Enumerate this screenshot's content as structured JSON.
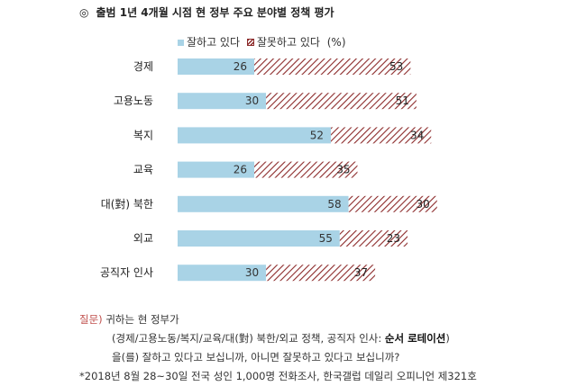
{
  "title": {
    "mark": "◎",
    "text": "출범 1년 4개월 시점 현 정부 주요 분야별 정책 평가"
  },
  "legend": {
    "good": "잘하고 있다",
    "bad": "잘못하고 있다",
    "unit": "(%)"
  },
  "colors": {
    "good": "#a9d3e6",
    "bad_stripe": "#8c2a2a",
    "question_label": "#c0504d"
  },
  "chart_data": {
    "type": "bar",
    "orientation": "horizontal",
    "stacked": true,
    "categories": [
      "경제",
      "고용노동",
      "복지",
      "교육",
      "대(對) 북한",
      "외교",
      "공직자 인사"
    ],
    "series": [
      {
        "name": "잘하고 있다",
        "values": [
          26,
          30,
          52,
          26,
          58,
          55,
          30
        ]
      },
      {
        "name": "잘못하고 있다",
        "values": [
          53,
          51,
          34,
          35,
          30,
          23,
          37
        ]
      }
    ],
    "unit": "%",
    "legend_position": "top",
    "grid": false
  },
  "notes": {
    "question_label": "질문)",
    "question_line1": "귀하는 현 정부가",
    "question_line2_prefix": "(경제/고용노동/복지/교육/대(對) 북한/외교 정책, 공직자 인사: ",
    "question_line2_bold": "순서 로테이션",
    "question_line2_suffix": ")",
    "question_line3": "을(를) 잘하고 있다고 보십니까, 아니면 잘못하고 있다고 보십니까?",
    "source": "*2018년 8월 28~30일 전국 성인 1,000명 전화조사, 한국갤럽 데일리 오피니언 제321호"
  }
}
